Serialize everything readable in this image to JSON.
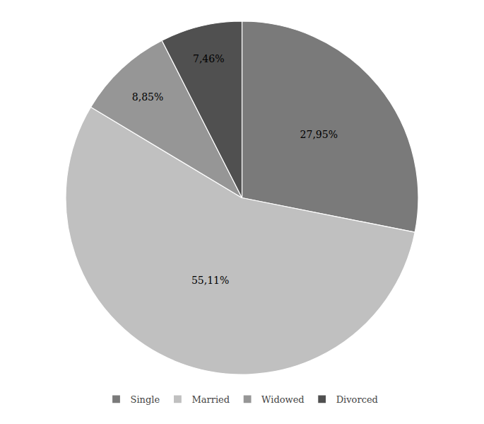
{
  "chart_data": {
    "type": "pie",
    "categories": [
      "Single",
      "Married",
      "Widowed",
      "Divorced"
    ],
    "values": [
      27.95,
      55.11,
      8.85,
      7.46
    ],
    "value_labels": [
      "27,95%",
      "55,11%",
      "8,85%",
      "7,46%"
    ],
    "colors": [
      "#7a7a7a",
      "#c0c0c0",
      "#969696",
      "#505050"
    ],
    "data_labels": true,
    "legend": "bottom"
  }
}
